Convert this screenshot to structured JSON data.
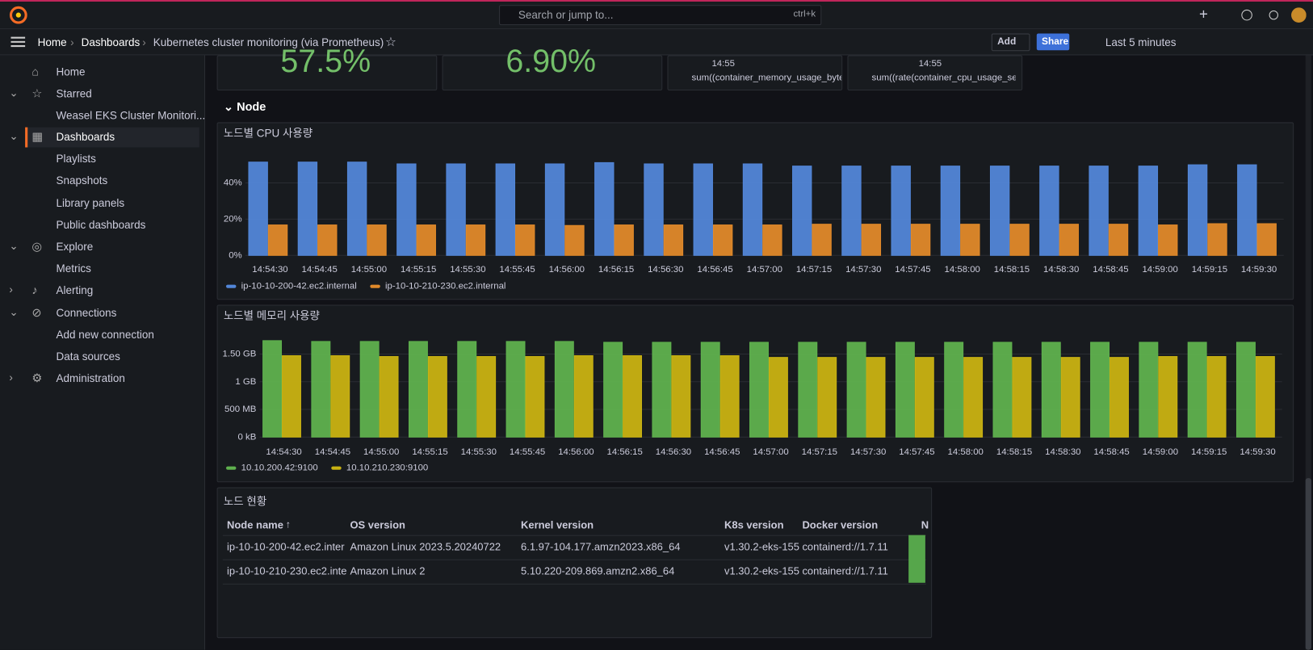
{
  "topbar": {
    "search": "Search or jump to...",
    "shortcut": "ctrl+k"
  },
  "breadcrumbs": [
    "Home",
    "Dashboards",
    "Kubernetes cluster monitoring (via Prometheus)"
  ],
  "toolbar": {
    "add": "Add",
    "share": "Share",
    "time_range": "Last 5 minutes"
  },
  "sidebar": {
    "items": [
      "Home",
      "Starred",
      "Weasel EKS Cluster Monitori...",
      "Dashboards",
      "Playlists",
      "Snapshots",
      "Library panels",
      "Public dashboards",
      "Explore",
      "Metrics",
      "Alerting",
      "Connections",
      "Add new connection",
      "Data sources",
      "Administration"
    ]
  },
  "top_panels": [
    {
      "value": "57.5%"
    },
    {
      "value": "6.90%"
    },
    {
      "time": "14:55",
      "legend": "sum((container_memory_usage_byte"
    },
    {
      "time": "14:55",
      "legend": "sum((rate(container_cpu_usage_seco"
    }
  ],
  "row_title": "Node",
  "chart_data": [
    {
      "type": "bar",
      "title": "노드별 CPU 사용량",
      "categories": [
        "14:54:30",
        "14:54:45",
        "14:55:00",
        "14:55:15",
        "14:55:30",
        "14:55:45",
        "14:56:00",
        "14:56:15",
        "14:56:30",
        "14:56:45",
        "14:57:00",
        "14:57:15",
        "14:57:30",
        "14:57:45",
        "14:58:00",
        "14:58:15",
        "14:58:30",
        "14:58:45",
        "14:59:00",
        "14:59:15",
        "14:59:30"
      ],
      "series": [
        {
          "name": "ip-10-10-200-42.ec2.internal",
          "color": "#5286d8",
          "values": [
            51.5,
            51.5,
            51.5,
            50.5,
            50.5,
            50.5,
            50.5,
            51.2,
            50.5,
            50.5,
            50.5,
            49.3,
            49.3,
            49.3,
            49.3,
            49.3,
            49.3,
            49.3,
            49.3,
            50,
            50
          ]
        },
        {
          "name": "ip-10-10-210-230.ec2.internal",
          "color": "#e0892a",
          "values": [
            16.8,
            16.8,
            16.8,
            16.8,
            16.8,
            16.8,
            16.5,
            16.8,
            16.8,
            16.8,
            16.8,
            17.2,
            17.2,
            17.2,
            17.2,
            17.2,
            17.2,
            17.2,
            16.8,
            17.5,
            17.5
          ]
        }
      ],
      "ylim": [
        0,
        55
      ],
      "yticks": [
        {
          "value": 0,
          "label": "0%"
        },
        {
          "value": 20,
          "label": "20%"
        },
        {
          "value": 40,
          "label": "40%"
        }
      ],
      "grid": true
    },
    {
      "type": "bar",
      "title": "노드별 메모리 사용량",
      "categories": [
        "14:54:30",
        "14:54:45",
        "14:55:00",
        "14:55:15",
        "14:55:30",
        "14:55:45",
        "14:56:00",
        "14:56:15",
        "14:56:30",
        "14:56:45",
        "14:57:00",
        "14:57:15",
        "14:57:30",
        "14:57:45",
        "14:58:00",
        "14:58:15",
        "14:58:30",
        "14:58:45",
        "14:59:00",
        "14:59:15",
        "14:59:30"
      ],
      "series": [
        {
          "name": "10.10.200.42:9100",
          "color": "#5fb14e",
          "values": [
            1742,
            1727,
            1727,
            1727,
            1727,
            1727,
            1727,
            1712,
            1712,
            1712,
            1712,
            1712,
            1712,
            1712,
            1712,
            1712,
            1712,
            1712,
            1712,
            1712,
            1712
          ]
        },
        {
          "name": "10.10.210.230:9100",
          "color": "#c9b212",
          "values": [
            1470,
            1470,
            1455,
            1455,
            1455,
            1455,
            1470,
            1470,
            1470,
            1470,
            1439,
            1439,
            1439,
            1439,
            1439,
            1439,
            1439,
            1439,
            1455,
            1455,
            1455
          ]
        }
      ],
      "ylim": [
        0,
        1830
      ],
      "yticks": [
        {
          "value": 0,
          "label": "0 kB"
        },
        {
          "value": 500,
          "label": "500 MB"
        },
        {
          "value": 1000,
          "label": "1 GB"
        },
        {
          "value": 1500,
          "label": "1.50 GB"
        }
      ],
      "grid": true
    }
  ],
  "table": {
    "title": "노드 현황",
    "columns": [
      "Node name",
      "OS version",
      "Kernel version",
      "K8s version",
      "Docker version",
      "N"
    ],
    "rows": [
      [
        "ip-10-10-200-42.ec2.inter",
        "Amazon Linux 2023.5.20240722",
        "6.1.97-104.177.amzn2023.x86_64",
        "v1.30.2-eks-155",
        "containerd://1.7.11"
      ],
      [
        "ip-10-10-210-230.ec2.inte",
        "Amazon Linux 2",
        "5.10.220-209.869.amzn2.x86_64",
        "v1.30.2-eks-155",
        "containerd://1.7.11"
      ]
    ]
  }
}
